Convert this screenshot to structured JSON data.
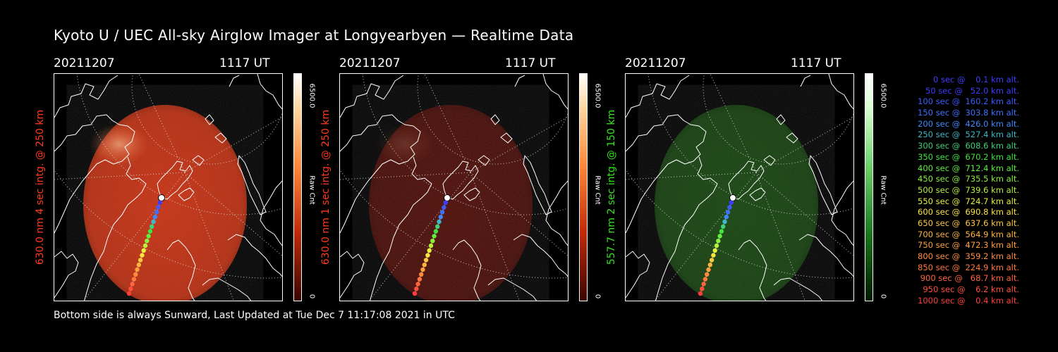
{
  "title": "Kyoto U / UEC All-sky Airglow Imager at Longyearbyen — Realtime Data",
  "footer": "Bottom side is always Sunward, Last Updated at Tue Dec  7 11:17:08 2021 in UTC",
  "panels": [
    {
      "date": "20211207",
      "time": "1117 UT",
      "ylabel": "630.0 nm 4 sec intg. @ 250 km",
      "label_color": "#ff3a1e",
      "colorbar": "red",
      "cb_max": "6500.0",
      "cb_unit": "Raw Cnt",
      "cb_min": "0",
      "airglow_color": "#ff3c14",
      "airglow_opacity": 0.78,
      "hotspot_opacity": 0.6
    },
    {
      "date": "20211207",
      "time": "1117 UT",
      "ylabel": "630.0 nm 1 sec intg. @ 250 km",
      "label_color": "#ff3a1e",
      "colorbar": "red",
      "cb_max": "6500.0",
      "cb_unit": "Raw Cnt",
      "cb_min": "0",
      "airglow_color": "#8a1208",
      "airglow_opacity": 0.55,
      "hotspot_opacity": 0.15
    },
    {
      "date": "20211207",
      "time": "1117 UT",
      "ylabel": "557.7 nm 2 sec intg. @ 150 km",
      "label_color": "#33e61a",
      "colorbar": "green",
      "cb_max": "6500.0",
      "cb_unit": "Raw Cnt",
      "cb_min": "0",
      "airglow_color": "#1c5e12",
      "airglow_opacity": 0.7,
      "hotspot_opacity": 0.0
    }
  ],
  "trajectory_legend": [
    {
      "text": "0 sec @    0.1 km alt.",
      "color": "#3d3dff"
    },
    {
      "text": "50 sec @   52.0 km alt.",
      "color": "#3d3dff"
    },
    {
      "text": "100 sec @  160.2 km alt.",
      "color": "#3d5cff"
    },
    {
      "text": "150 sec @  303.8 km alt.",
      "color": "#3d70ff"
    },
    {
      "text": "200 sec @  426.0 km alt.",
      "color": "#3d8aff"
    },
    {
      "text": "250 sec @  527.4 km alt.",
      "color": "#3db8c8"
    },
    {
      "text": "300 sec @  608.6 km alt.",
      "color": "#3dd27a"
    },
    {
      "text": "350 sec @  670.2 km alt.",
      "color": "#3de63d"
    },
    {
      "text": "400 sec @  712.4 km alt.",
      "color": "#5ef03d"
    },
    {
      "text": "450 sec @  735.5 km alt.",
      "color": "#8cf03d"
    },
    {
      "text": "500 sec @  739.6 km alt.",
      "color": "#b8f03d"
    },
    {
      "text": "550 sec @  724.7 km alt.",
      "color": "#e6f03d"
    },
    {
      "text": "600 sec @  690.8 km alt.",
      "color": "#ffe43d"
    },
    {
      "text": "650 sec @  637.6 km alt.",
      "color": "#ffc83d"
    },
    {
      "text": "700 sec @  564.9 km alt.",
      "color": "#ffb43d"
    },
    {
      "text": "750 sec @  472.3 km alt.",
      "color": "#ffa03d"
    },
    {
      "text": "800 sec @  359.2 km alt.",
      "color": "#ff8c3d"
    },
    {
      "text": "850 sec @  224.9 km alt.",
      "color": "#ff783d"
    },
    {
      "text": "900 sec @   68.7 km alt.",
      "color": "#ff643d"
    },
    {
      "text": "950 sec @    6.2 km alt.",
      "color": "#ff503d"
    },
    {
      "text": "1000 sec @    0.4 km alt.",
      "color": "#ff3d3d"
    }
  ]
}
